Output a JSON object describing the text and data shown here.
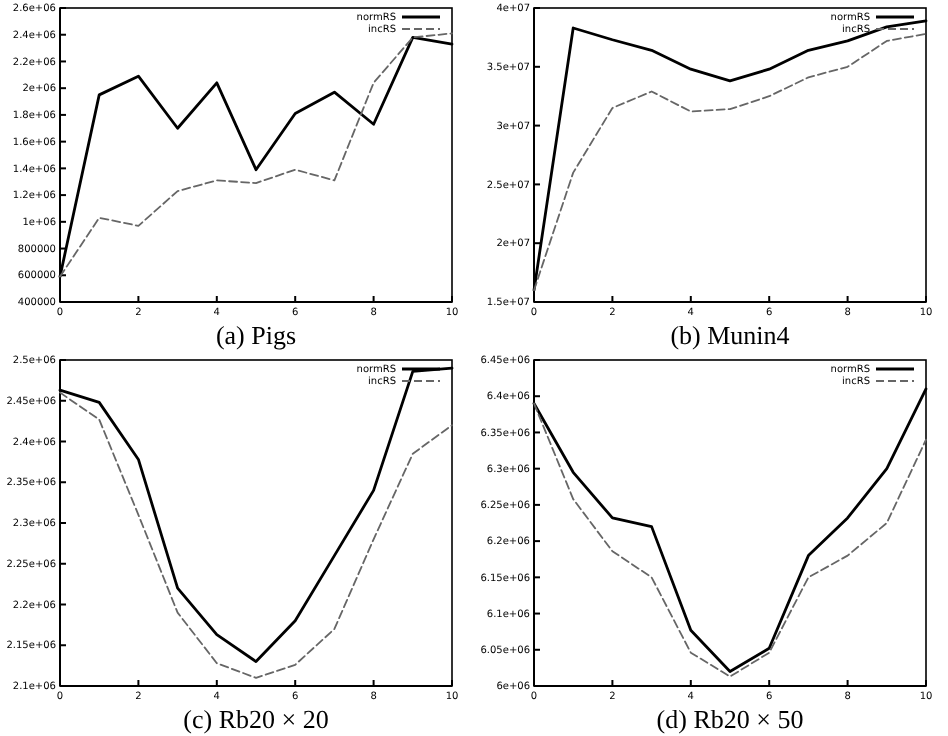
{
  "chart_data": [
    {
      "type": "line",
      "title": "(a) Pigs",
      "x": [
        0,
        1,
        2,
        3,
        4,
        5,
        6,
        7,
        8,
        9,
        10
      ],
      "xlim": [
        0,
        10
      ],
      "xticks": [
        0,
        2,
        4,
        6,
        8,
        10
      ],
      "ylim": [
        400000,
        2600000
      ],
      "yticks": [
        {
          "value": 400000,
          "label": "400000"
        },
        {
          "value": 600000,
          "label": "600000"
        },
        {
          "value": 800000,
          "label": "800000"
        },
        {
          "value": 1000000,
          "label": "1e+06"
        },
        {
          "value": 1200000,
          "label": "1.2e+06"
        },
        {
          "value": 1400000,
          "label": "1.4e+06"
        },
        {
          "value": 1600000,
          "label": "1.6e+06"
        },
        {
          "value": 1800000,
          "label": "1.8e+06"
        },
        {
          "value": 2000000,
          "label": "2e+06"
        },
        {
          "value": 2200000,
          "label": "2.2e+06"
        },
        {
          "value": 2400000,
          "label": "2.4e+06"
        },
        {
          "value": 2600000,
          "label": "2.6e+06"
        }
      ],
      "legend": "top right",
      "grid": false,
      "series": [
        {
          "name": "normRS",
          "color": "#000000",
          "line_style": "solid",
          "values": [
            590000,
            1950000,
            2090000,
            1700000,
            2040000,
            1390000,
            1810000,
            1970000,
            1730000,
            2380000,
            2330000
          ]
        },
        {
          "name": "incRS",
          "color": "#666666",
          "line_style": "dashed",
          "values": [
            590000,
            1030000,
            970000,
            1230000,
            1310000,
            1290000,
            1390000,
            1310000,
            2040000,
            2380000,
            2410000
          ]
        }
      ]
    },
    {
      "type": "line",
      "title": "(b) Munin4",
      "x": [
        0,
        1,
        2,
        3,
        4,
        5,
        6,
        7,
        8,
        9,
        10
      ],
      "xlim": [
        0,
        10
      ],
      "xticks": [
        0,
        2,
        4,
        6,
        8,
        10
      ],
      "ylim": [
        15000000,
        40000000
      ],
      "yticks": [
        {
          "value": 15000000,
          "label": "1.5e+07"
        },
        {
          "value": 20000000,
          "label": "2e+07"
        },
        {
          "value": 25000000,
          "label": "2.5e+07"
        },
        {
          "value": 30000000,
          "label": "3e+07"
        },
        {
          "value": 35000000,
          "label": "3.5e+07"
        },
        {
          "value": 40000000,
          "label": "4e+07"
        }
      ],
      "legend": "top right",
      "grid": false,
      "series": [
        {
          "name": "normRS",
          "color": "#000000",
          "line_style": "solid",
          "values": [
            16000000,
            38300000,
            37300000,
            36400000,
            34800000,
            33800000,
            34800000,
            36400000,
            37200000,
            38400000,
            38900000
          ]
        },
        {
          "name": "incRS",
          "color": "#666666",
          "line_style": "dashed",
          "values": [
            16000000,
            26000000,
            31500000,
            32900000,
            31200000,
            31400000,
            32500000,
            34100000,
            35000000,
            37200000,
            37800000
          ]
        }
      ]
    },
    {
      "type": "line",
      "title": "(c) Rb20 × 20",
      "x": [
        0,
        1,
        2,
        3,
        4,
        5,
        6,
        7,
        8,
        9,
        10
      ],
      "xlim": [
        0,
        10
      ],
      "xticks": [
        0,
        2,
        4,
        6,
        8,
        10
      ],
      "ylim": [
        2100000,
        2500000
      ],
      "yticks": [
        {
          "value": 2100000,
          "label": "2.1e+06"
        },
        {
          "value": 2150000,
          "label": "2.15e+06"
        },
        {
          "value": 2200000,
          "label": "2.2e+06"
        },
        {
          "value": 2250000,
          "label": "2.25e+06"
        },
        {
          "value": 2300000,
          "label": "2.3e+06"
        },
        {
          "value": 2350000,
          "label": "2.35e+06"
        },
        {
          "value": 2400000,
          "label": "2.4e+06"
        },
        {
          "value": 2450000,
          "label": "2.45e+06"
        },
        {
          "value": 2500000,
          "label": "2.5e+06"
        }
      ],
      "legend": "top right",
      "grid": false,
      "series": [
        {
          "name": "normRS",
          "color": "#000000",
          "line_style": "solid",
          "values": [
            2463000,
            2448000,
            2378000,
            2220000,
            2163000,
            2130000,
            2180000,
            2260000,
            2340000,
            2486000,
            2490000
          ]
        },
        {
          "name": "incRS",
          "color": "#666666",
          "line_style": "dashed",
          "values": [
            2460000,
            2427000,
            2310000,
            2190000,
            2128000,
            2110000,
            2126000,
            2170000,
            2280000,
            2385000,
            2420000
          ]
        }
      ]
    },
    {
      "type": "line",
      "title": "(d) Rb20 × 50",
      "x": [
        0,
        1,
        2,
        3,
        4,
        5,
        6,
        7,
        8,
        9,
        10
      ],
      "xlim": [
        0,
        10
      ],
      "xticks": [
        0,
        2,
        4,
        6,
        8,
        10
      ],
      "ylim": [
        6000000,
        6450000
      ],
      "yticks": [
        {
          "value": 6000000,
          "label": "6e+06"
        },
        {
          "value": 6050000,
          "label": "6.05e+06"
        },
        {
          "value": 6100000,
          "label": "6.1e+06"
        },
        {
          "value": 6150000,
          "label": "6.15e+06"
        },
        {
          "value": 6200000,
          "label": "6.2e+06"
        },
        {
          "value": 6250000,
          "label": "6.25e+06"
        },
        {
          "value": 6300000,
          "label": "6.3e+06"
        },
        {
          "value": 6350000,
          "label": "6.35e+06"
        },
        {
          "value": 6400000,
          "label": "6.4e+06"
        },
        {
          "value": 6450000,
          "label": "6.45e+06"
        }
      ],
      "legend": "top right",
      "grid": false,
      "series": [
        {
          "name": "normRS",
          "color": "#000000",
          "line_style": "solid",
          "values": [
            6390000,
            6295000,
            6232000,
            6220000,
            6077000,
            6020000,
            6052000,
            6180000,
            6232000,
            6300000,
            6410000
          ]
        },
        {
          "name": "incRS",
          "color": "#666666",
          "line_style": "dashed",
          "values": [
            6390000,
            6258000,
            6186000,
            6150000,
            6046000,
            6013000,
            6046000,
            6150000,
            6180000,
            6225000,
            6340000
          ]
        }
      ]
    }
  ]
}
